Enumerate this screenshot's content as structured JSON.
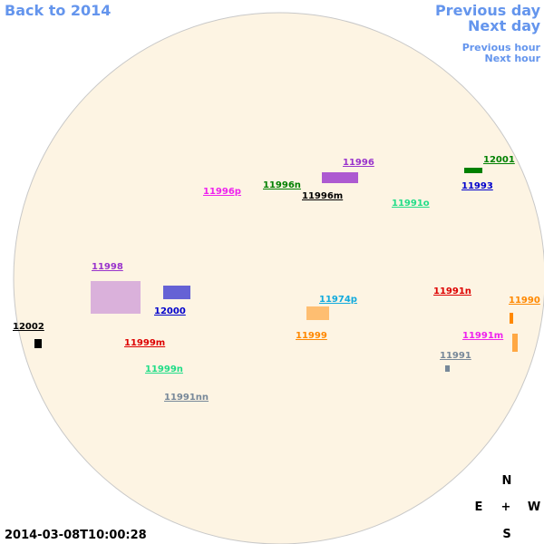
{
  "nav": {
    "back": "Back to 2014",
    "previous_day": "Previous day",
    "next_day": "Next day",
    "previous_hour": "Previous hour",
    "next_hour": "Next hour"
  },
  "regions": [
    {
      "label": "11996",
      "color": "#9933cc"
    },
    {
      "label": "12001",
      "color": "#008000"
    },
    {
      "label": "11996n",
      "color": "#008000"
    },
    {
      "label": "11996p",
      "color": "#ee22ee"
    },
    {
      "label": "11996m",
      "color": "#000000"
    },
    {
      "label": "11993",
      "color": "#0000cc"
    },
    {
      "label": "11991o",
      "color": "#22dd88"
    },
    {
      "label": "11998",
      "color": "#9933cc"
    },
    {
      "label": "12000",
      "color": "#0000cc"
    },
    {
      "label": "11974p",
      "color": "#11aadd"
    },
    {
      "label": "11991n",
      "color": "#dd0000"
    },
    {
      "label": "11990",
      "color": "#ff8800"
    },
    {
      "label": "12002",
      "color": "#000000"
    },
    {
      "label": "11999m",
      "color": "#dd0000"
    },
    {
      "label": "11999",
      "color": "#ff8800"
    },
    {
      "label": "11991m",
      "color": "#ee22ee"
    },
    {
      "label": "11991",
      "color": "#778899"
    },
    {
      "label": "11999n",
      "color": "#22dd88"
    },
    {
      "label": "11991nn",
      "color": "#778899"
    }
  ],
  "compass": {
    "north": "N",
    "east": "E",
    "center": "+",
    "west": "W",
    "south": "S"
  },
  "timestamp": "2014-03-08T10:00:28"
}
